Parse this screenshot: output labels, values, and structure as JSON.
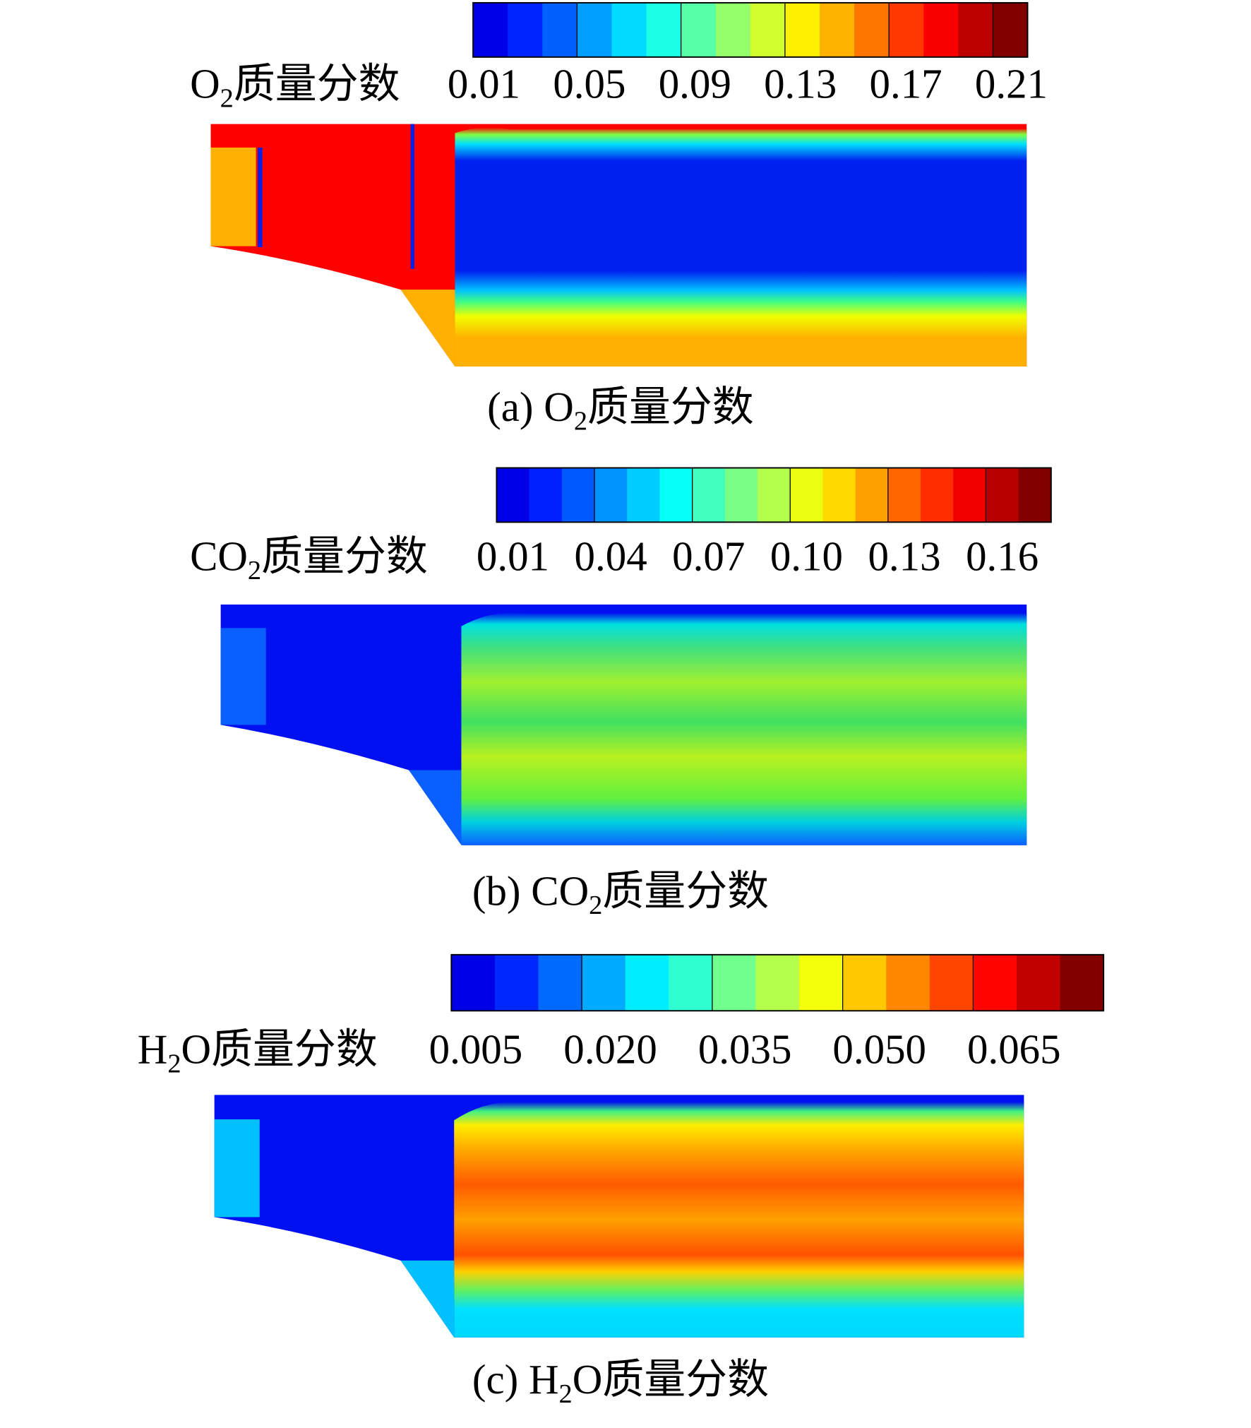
{
  "panels": [
    {
      "legend": {
        "title": {
          "main": "O",
          "sub": "2",
          "rest": "质量分数"
        },
        "ticks": [
          "0.01",
          "0.05",
          "0.09",
          "0.13",
          "0.17",
          "0.21"
        ]
      },
      "caption": {
        "main": "(a) O",
        "sub": "2",
        "rest": "质量分数"
      }
    },
    {
      "legend": {
        "title": {
          "main": "CO",
          "sub": "2",
          "rest": "质量分数"
        },
        "ticks": [
          "0.01",
          "0.04",
          "0.07",
          "0.10",
          "0.13",
          "0.16"
        ]
      },
      "caption": {
        "main": "(b) CO",
        "sub": "2",
        "rest": "质量分数"
      }
    },
    {
      "legend": {
        "title": {
          "main": "H",
          "sub": "2",
          "rest": "O质量分数"
        },
        "ticks": [
          "0.005",
          "0.020",
          "0.035",
          "0.050",
          "0.065"
        ]
      },
      "caption": {
        "main": "(c) H",
        "sub": "2",
        "rest": "O质量分数"
      }
    }
  ]
}
